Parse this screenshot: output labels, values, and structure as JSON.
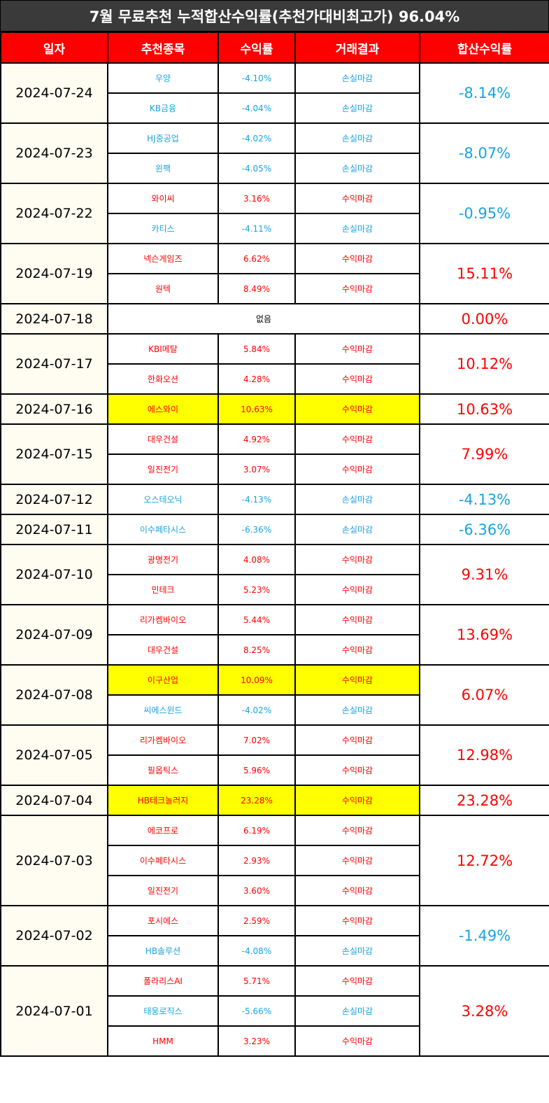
{
  "title": "7월 무료추천 누적합산수익률(추천가대비최고가) 96.04%",
  "headers": [
    "일자",
    "추천종목",
    "수익률",
    "거래결과",
    "합산수익률"
  ],
  "colors": {
    "positive": "#ff0000",
    "negative": "#1aa3e0",
    "highlight": "#ffff00",
    "header_bg": "#ff0000",
    "title_bg": "#3a3a3a"
  },
  "groups": [
    {
      "date": "2024-07-24",
      "total": "-8.14%",
      "total_sign": "neg",
      "rows": [
        {
          "stock": "우양",
          "rate": "-4.10%",
          "result": "손실마감",
          "sign": "neg"
        },
        {
          "stock": "KB금융",
          "rate": "-4.04%",
          "result": "손실마감",
          "sign": "neg"
        }
      ]
    },
    {
      "date": "2024-07-23",
      "total": "-8.07%",
      "total_sign": "neg",
      "rows": [
        {
          "stock": "HJ중공업",
          "rate": "-4.02%",
          "result": "손실마감",
          "sign": "neg"
        },
        {
          "stock": "윈팩",
          "rate": "-4.05%",
          "result": "손실마감",
          "sign": "neg"
        }
      ]
    },
    {
      "date": "2024-07-22",
      "total": "-0.95%",
      "total_sign": "neg",
      "rows": [
        {
          "stock": "와이씨",
          "rate": "3.16%",
          "result": "수익마감",
          "sign": "pos"
        },
        {
          "stock": "카티스",
          "rate": "-4.11%",
          "result": "손실마감",
          "sign": "neg"
        }
      ]
    },
    {
      "date": "2024-07-19",
      "total": "15.11%",
      "total_sign": "pos",
      "rows": [
        {
          "stock": "넥슨게임즈",
          "rate": "6.62%",
          "result": "수익마감",
          "sign": "pos"
        },
        {
          "stock": "원텍",
          "rate": "8.49%",
          "result": "수익마감",
          "sign": "pos"
        }
      ]
    },
    {
      "date": "2024-07-18",
      "total": "0.00%",
      "total_sign": "pos",
      "empty": "없음",
      "rows": []
    },
    {
      "date": "2024-07-17",
      "total": "10.12%",
      "total_sign": "pos",
      "rows": [
        {
          "stock": "KBI메탈",
          "rate": "5.84%",
          "result": "수익마감",
          "sign": "pos"
        },
        {
          "stock": "한화오션",
          "rate": "4.28%",
          "result": "수익마감",
          "sign": "pos"
        }
      ]
    },
    {
      "date": "2024-07-16",
      "total": "10.63%",
      "total_sign": "pos",
      "rows": [
        {
          "stock": "에스와이",
          "rate": "10.63%",
          "result": "수익마감",
          "sign": "pos",
          "highlight": true
        }
      ]
    },
    {
      "date": "2024-07-15",
      "total": "7.99%",
      "total_sign": "pos",
      "rows": [
        {
          "stock": "대우건설",
          "rate": "4.92%",
          "result": "수익마감",
          "sign": "pos"
        },
        {
          "stock": "일진전기",
          "rate": "3.07%",
          "result": "수익마감",
          "sign": "pos"
        }
      ]
    },
    {
      "date": "2024-07-12",
      "total": "-4.13%",
      "total_sign": "neg",
      "rows": [
        {
          "stock": "오스테오닉",
          "rate": "-4.13%",
          "result": "손실마감",
          "sign": "neg"
        }
      ]
    },
    {
      "date": "2024-07-11",
      "total": "-6.36%",
      "total_sign": "neg",
      "rows": [
        {
          "stock": "이수페타시스",
          "rate": "-6.36%",
          "result": "손실마감",
          "sign": "neg"
        }
      ]
    },
    {
      "date": "2024-07-10",
      "total": "9.31%",
      "total_sign": "pos",
      "rows": [
        {
          "stock": "광명전기",
          "rate": "4.08%",
          "result": "수익마감",
          "sign": "pos"
        },
        {
          "stock": "민테크",
          "rate": "5.23%",
          "result": "수익마감",
          "sign": "pos"
        }
      ]
    },
    {
      "date": "2024-07-09",
      "total": "13.69%",
      "total_sign": "pos",
      "rows": [
        {
          "stock": "리가켐바이오",
          "rate": "5.44%",
          "result": "수익마감",
          "sign": "pos"
        },
        {
          "stock": "대우건설",
          "rate": "8.25%",
          "result": "수익마감",
          "sign": "pos"
        }
      ]
    },
    {
      "date": "2024-07-08",
      "total": "6.07%",
      "total_sign": "pos",
      "rows": [
        {
          "stock": "이구산업",
          "rate": "10.09%",
          "result": "수익마감",
          "sign": "pos",
          "highlight": true
        },
        {
          "stock": "씨에스윈드",
          "rate": "-4.02%",
          "result": "손실마감",
          "sign": "neg"
        }
      ]
    },
    {
      "date": "2024-07-05",
      "total": "12.98%",
      "total_sign": "pos",
      "rows": [
        {
          "stock": "리가켐바이오",
          "rate": "7.02%",
          "result": "수익마감",
          "sign": "pos"
        },
        {
          "stock": "필옵틱스",
          "rate": "5.96%",
          "result": "수익마감",
          "sign": "pos"
        }
      ]
    },
    {
      "date": "2024-07-04",
      "total": "23.28%",
      "total_sign": "pos",
      "rows": [
        {
          "stock": "HB테크놀러지",
          "rate": "23.28%",
          "result": "수익마감",
          "sign": "pos",
          "highlight": true
        }
      ]
    },
    {
      "date": "2024-07-03",
      "total": "12.72%",
      "total_sign": "pos",
      "rows": [
        {
          "stock": "에코프로",
          "rate": "6.19%",
          "result": "수익마감",
          "sign": "pos"
        },
        {
          "stock": "이수페타시스",
          "rate": "2.93%",
          "result": "수익마감",
          "sign": "pos"
        },
        {
          "stock": "일진전기",
          "rate": "3.60%",
          "result": "수익마감",
          "sign": "pos"
        }
      ]
    },
    {
      "date": "2024-07-02",
      "total": "-1.49%",
      "total_sign": "neg",
      "rows": [
        {
          "stock": "포시에스",
          "rate": "2.59%",
          "result": "수익마감",
          "sign": "pos"
        },
        {
          "stock": "HB솔루션",
          "rate": "-4.08%",
          "result": "손실마감",
          "sign": "neg"
        }
      ]
    },
    {
      "date": "2024-07-01",
      "total": "3.28%",
      "total_sign": "pos",
      "rows": [
        {
          "stock": "폴라리스AI",
          "rate": "5.71%",
          "result": "수익마감",
          "sign": "pos"
        },
        {
          "stock": "태웅로직스",
          "rate": "-5.66%",
          "result": "손실마감",
          "sign": "neg"
        },
        {
          "stock": "HMM",
          "rate": "3.23%",
          "result": "수익마감",
          "sign": "pos"
        }
      ]
    }
  ]
}
